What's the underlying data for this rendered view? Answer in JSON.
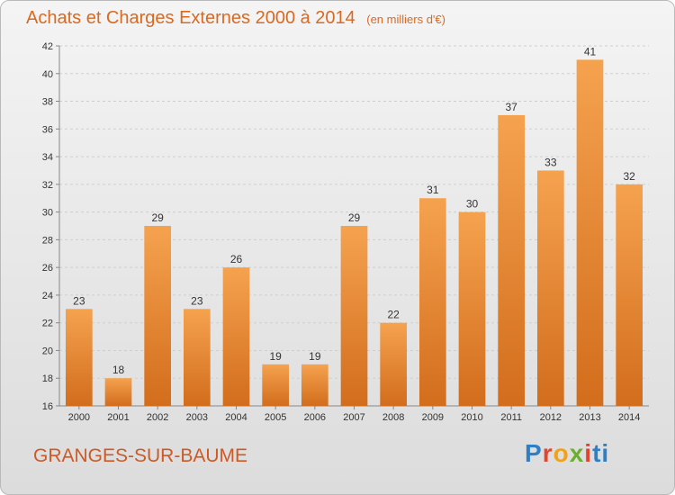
{
  "title": "Achats et Charges Externes 2000 à 2014",
  "unit": "(en milliers d'€)",
  "place": "GRANGES-SUR-BAUME",
  "brand": "Proxiti",
  "colors": {
    "bar_light": "#f5a24f",
    "bar_dark": "#d26d1c",
    "text": "#d86a22"
  },
  "chart_data": {
    "type": "bar",
    "title": "Achats et Charges Externes 2000 à 2014",
    "subtitle": "(en milliers d'€)",
    "categories": [
      "2000",
      "2001",
      "2002",
      "2003",
      "2004",
      "2005",
      "2006",
      "2007",
      "2008",
      "2009",
      "2010",
      "2011",
      "2012",
      "2013",
      "2014"
    ],
    "values": [
      23,
      18,
      29,
      23,
      26,
      19,
      19,
      29,
      22,
      31,
      30,
      37,
      33,
      41,
      32
    ],
    "ylim": [
      16,
      42
    ],
    "yticks": [
      16,
      18,
      20,
      22,
      24,
      26,
      28,
      30,
      32,
      34,
      36,
      38,
      40,
      42
    ],
    "grid": true,
    "data_labels": true
  }
}
